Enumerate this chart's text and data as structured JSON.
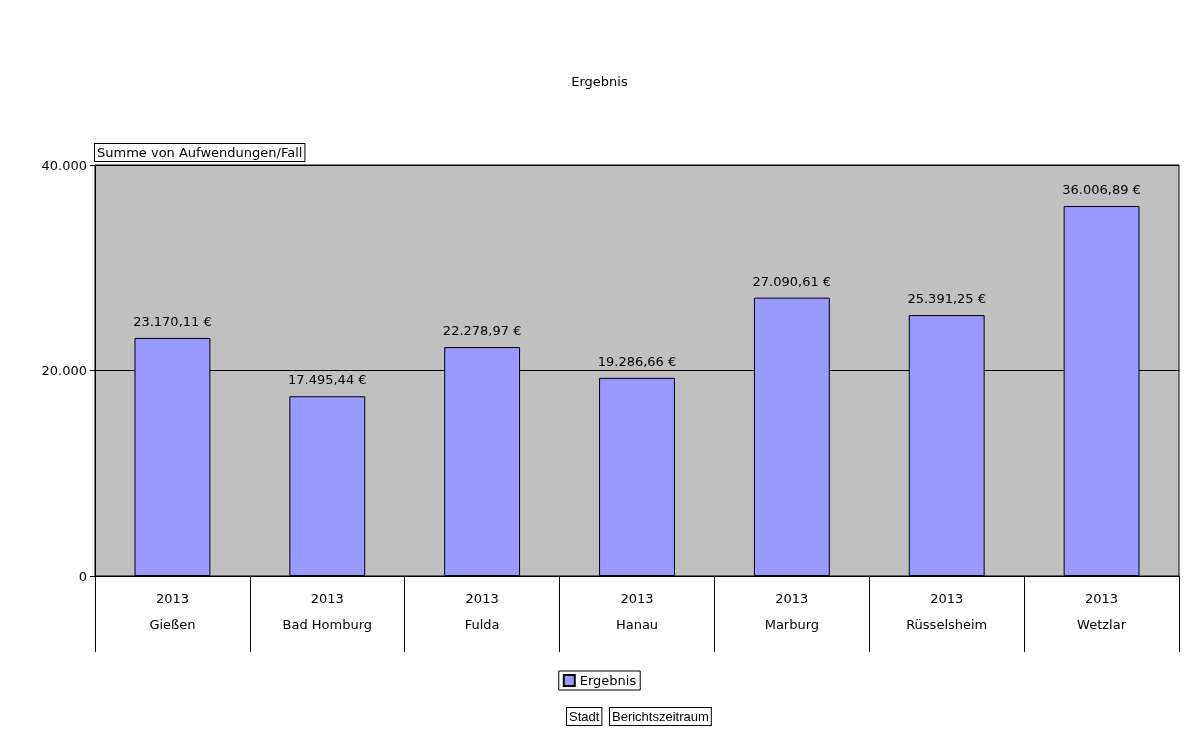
{
  "chart_data": {
    "type": "bar",
    "title": "Ergebnis",
    "ylabel": "Summe von Aufwendungen/Fall",
    "categories": [
      "2013\n\nGießen",
      "2013\n\nBad Homburg",
      "2013\n\nFulda",
      "2013\n\nHanau",
      "2013\n\nMarburg",
      "2013\n\nRüsselsheim",
      "2013\n\nWetzlar"
    ],
    "series": [
      {
        "name": "Ergebnis",
        "color": "#9999ff",
        "values": [
          23170.11,
          17495.44,
          22278.97,
          19286.66,
          27090.61,
          25391.25,
          36006.89
        ],
        "value_labels": [
          "23.170,11 €",
          "17.495,44 €",
          "22.278,97 €",
          "19.286,66 €",
          "27.090,61 €",
          "25.391,25 €",
          "36.006,89 €"
        ]
      }
    ],
    "ylim": [
      0,
      40000
    ],
    "yticks": [
      {
        "value": 0,
        "label": "0"
      },
      {
        "value": 20000,
        "label": "20.000"
      },
      {
        "value": 40000,
        "label": "40.000"
      }
    ],
    "grid": "y",
    "legend": "bottom",
    "annotations": [
      "Stadt",
      "Berichtszeitraum"
    ]
  }
}
